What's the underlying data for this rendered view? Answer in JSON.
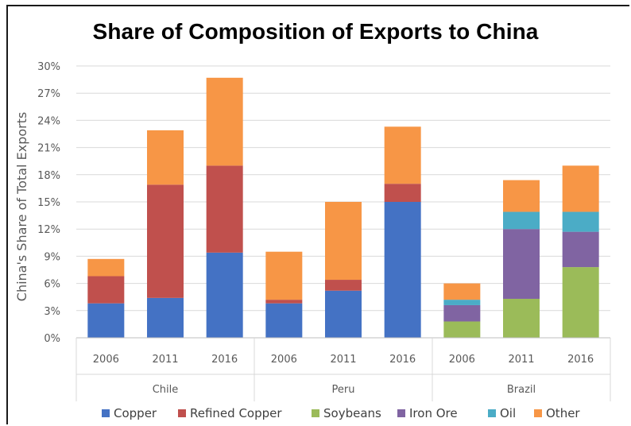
{
  "chart_data": {
    "type": "bar",
    "stacked": true,
    "title": "Share of Composition of Exports to China",
    "ylabel": "China's Share of Total Exports",
    "xlabel": "",
    "ylim": [
      0,
      30
    ],
    "yticks": [
      "0%",
      "3%",
      "6%",
      "9%",
      "12%",
      "15%",
      "18%",
      "21%",
      "24%",
      "27%",
      "30%"
    ],
    "grid": true,
    "legend_position": "bottom",
    "groups": [
      {
        "name": "Chile",
        "categories": [
          "2006",
          "2011",
          "2016"
        ]
      },
      {
        "name": "Peru",
        "categories": [
          "2006",
          "2011",
          "2016"
        ]
      },
      {
        "name": "Brazil",
        "categories": [
          "2006",
          "2011",
          "2016"
        ]
      }
    ],
    "series": [
      {
        "name": "Copper",
        "color": "#4472c4",
        "values": [
          3.8,
          4.4,
          9.4,
          3.8,
          5.2,
          15.0,
          0,
          0,
          0
        ]
      },
      {
        "name": "Refined Copper",
        "color": "#c0504d",
        "values": [
          3.0,
          12.5,
          9.6,
          0.4,
          1.2,
          2.0,
          0,
          0,
          0
        ]
      },
      {
        "name": "Soybeans",
        "color": "#9bbb59",
        "values": [
          0,
          0,
          0,
          0,
          0,
          0,
          1.8,
          4.3,
          7.8
        ]
      },
      {
        "name": "Iron Ore",
        "color": "#8064a2",
        "values": [
          0,
          0,
          0,
          0,
          0,
          0,
          1.8,
          7.7,
          3.9
        ]
      },
      {
        "name": "Oil",
        "color": "#4bacc6",
        "values": [
          0,
          0,
          0,
          0,
          0,
          0,
          0.6,
          1.9,
          2.2
        ]
      },
      {
        "name": "Other",
        "color": "#f79646",
        "values": [
          1.9,
          6.0,
          9.7,
          5.3,
          8.6,
          6.3,
          1.8,
          3.5,
          5.1
        ]
      }
    ]
  }
}
